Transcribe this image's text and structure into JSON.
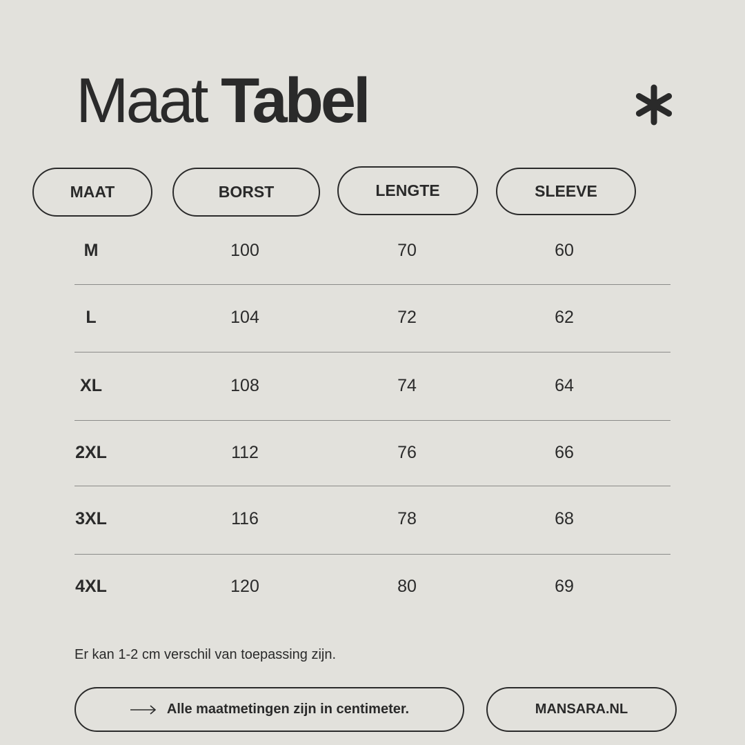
{
  "title": {
    "light": "Maat",
    "bold": "Tabel"
  },
  "icons": {
    "decoration": "asterisk-icon",
    "footer": "arrow-right-icon"
  },
  "colors": {
    "background": "#e2e1dc",
    "text": "#2a2a2a"
  },
  "headers": [
    "MAAT",
    "BORST",
    "LENGTE",
    "SLEEVE"
  ],
  "rows": [
    [
      "M",
      "100",
      "70",
      "60"
    ],
    [
      "L",
      "104",
      "72",
      "62"
    ],
    [
      "XL",
      "108",
      "74",
      "64"
    ],
    [
      "2XL",
      "112",
      "76",
      "66"
    ],
    [
      "3XL",
      "116",
      "78",
      "68"
    ],
    [
      "4XL",
      "120",
      "80",
      "69"
    ]
  ],
  "note": "Er kan 1-2 cm verschil van toepassing zijn.",
  "footer": {
    "info": "Alle maatmetingen zijn in centimeter.",
    "site": "MANSARA.NL"
  }
}
